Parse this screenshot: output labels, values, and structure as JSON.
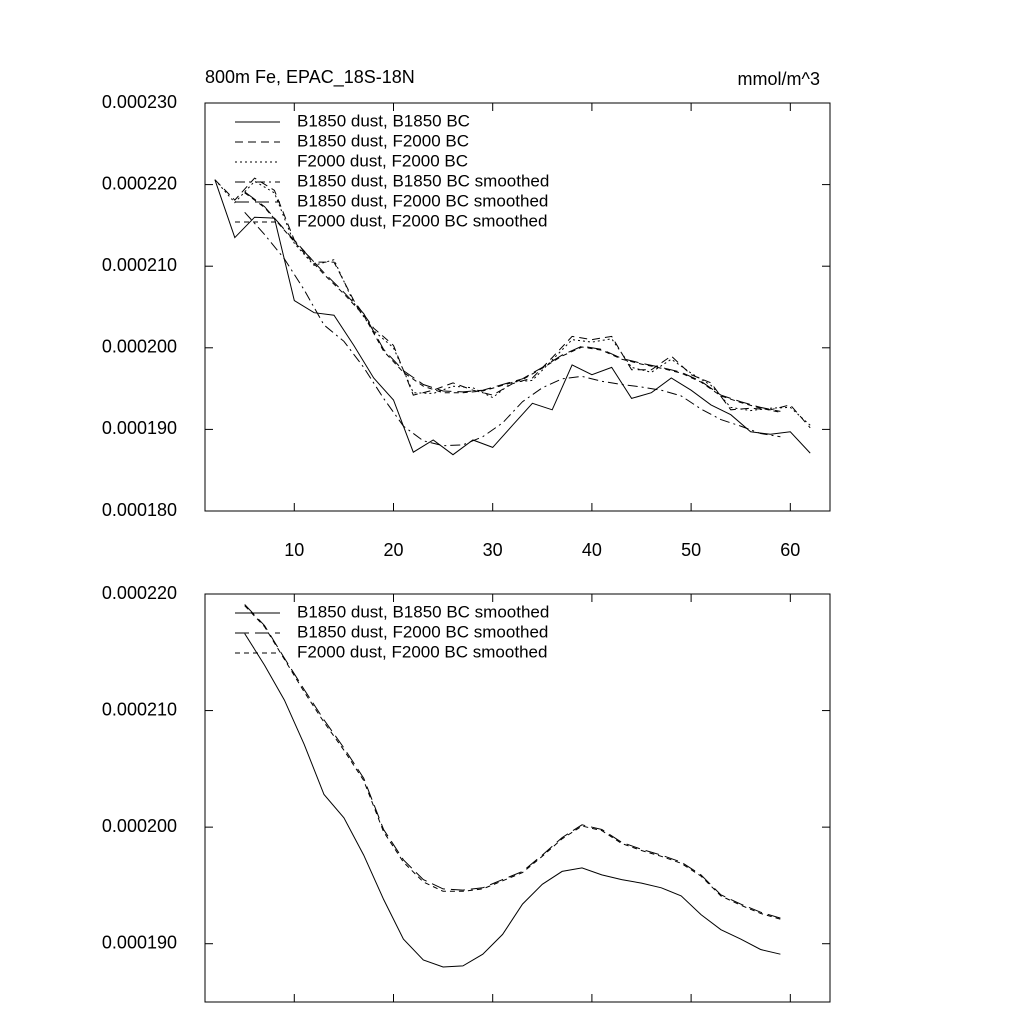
{
  "chart_data": [
    {
      "type": "line",
      "title": "800m Fe, EPAC_18S-18N",
      "units": "mmol/m^3",
      "xlim": [
        1,
        64
      ],
      "xticks": [
        10,
        20,
        30,
        40,
        50,
        60
      ],
      "ylim": [
        0.00018,
        0.00023
      ],
      "yticks": [
        {
          "value": 0.00018,
          "label": "0.000180"
        },
        {
          "value": 0.00019,
          "label": "0.000190"
        },
        {
          "value": 0.0002,
          "label": "0.000200"
        },
        {
          "value": 0.00021,
          "label": "0.000210"
        },
        {
          "value": 0.00022,
          "label": "0.000220"
        },
        {
          "value": 0.00023,
          "label": "0.000230"
        }
      ],
      "series": [
        {
          "name": "B1850 dust, B1850 BC",
          "color": "#000000",
          "dash": "solid",
          "x": [
            2,
            4,
            6,
            8,
            10,
            12,
            14,
            16,
            18,
            20,
            22,
            24,
            26,
            28,
            30,
            32,
            34,
            36,
            38,
            40,
            42,
            44,
            46,
            48,
            50,
            52,
            54,
            56,
            58,
            60,
            62
          ],
          "values": [
            0.0002206,
            0.0002135,
            0.000216,
            0.0002159,
            0.0002058,
            0.0002043,
            0.000204,
            0.0002003,
            0.0001963,
            0.0001936,
            0.0001872,
            0.0001887,
            0.0001869,
            0.0001887,
            0.0001878,
            0.0001905,
            0.0001932,
            0.0001924,
            0.0001979,
            0.0001967,
            0.0001976,
            0.0001938,
            0.0001945,
            0.0001963,
            0.0001948,
            0.000193,
            0.0001918,
            0.0001897,
            0.0001894,
            0.0001897,
            0.0001871
          ]
        },
        {
          "name": "B1850 dust, F2000 BC",
          "color": "#000000",
          "dash": "dashed",
          "x": [
            2,
            4,
            6,
            8,
            10,
            12,
            14,
            16,
            18,
            20,
            22,
            24,
            26,
            28,
            30,
            32,
            34,
            36,
            38,
            40,
            42,
            44,
            46,
            48,
            50,
            52,
            54,
            56,
            58,
            60,
            62
          ],
          "values": [
            0.0002206,
            0.0002181,
            0.0002208,
            0.0002193,
            0.0002132,
            0.0002105,
            0.0002105,
            0.0002058,
            0.0002024,
            0.0002003,
            0.0001942,
            0.0001948,
            0.0001957,
            0.0001948,
            0.0001942,
            0.0001956,
            0.0001963,
            0.0001988,
            0.0002014,
            0.000201,
            0.0002014,
            0.0001973,
            0.0001973,
            0.000199,
            0.0001967,
            0.0001957,
            0.0001924,
            0.0001926,
            0.0001924,
            0.000193,
            0.0001902
          ]
        },
        {
          "name": "F2000 dust, F2000 BC",
          "color": "#000000",
          "dash": "dotted",
          "x": [
            2,
            4,
            6,
            8,
            10,
            12,
            14,
            16,
            18,
            20,
            22,
            24,
            26,
            28,
            30,
            32,
            34,
            36,
            38,
            40,
            42,
            44,
            46,
            48,
            50,
            52,
            54,
            56,
            58,
            60,
            62
          ],
          "values": [
            0.0002206,
            0.0002178,
            0.0002204,
            0.000219,
            0.0002128,
            0.0002101,
            0.0002108,
            0.0002055,
            0.0002021,
            0.0002,
            0.0001945,
            0.0001944,
            0.0001953,
            0.0001951,
            0.0001939,
            0.0001958,
            0.000196,
            0.0001985,
            0.000201,
            0.0002007,
            0.0002011,
            0.0001976,
            0.000197,
            0.0001986,
            0.0001969,
            0.0001954,
            0.0001927,
            0.0001923,
            0.0001926,
            0.0001927,
            0.0001905
          ]
        },
        {
          "name": "B1850 dust, B1850 BC smoothed",
          "color": "#000000",
          "dash": "dashdot",
          "x": [
            5,
            7,
            9,
            11,
            13,
            15,
            17,
            19,
            21,
            23,
            25,
            27,
            29,
            31,
            33,
            35,
            37,
            39,
            41,
            43,
            45,
            47,
            49,
            51,
            53,
            55,
            57,
            59
          ],
          "values": [
            0.0002166,
            0.0002139,
            0.0002109,
            0.0002071,
            0.0002028,
            0.0002008,
            0.0001976,
            0.0001938,
            0.0001904,
            0.0001886,
            0.000188,
            0.0001881,
            0.0001891,
            0.0001908,
            0.0001934,
            0.0001951,
            0.0001962,
            0.0001965,
            0.0001959,
            0.0001955,
            0.0001952,
            0.0001948,
            0.0001941,
            0.0001925,
            0.0001912,
            0.0001904,
            0.0001895,
            0.0001891
          ]
        },
        {
          "name": "B1850 dust, F2000 BC smoothed",
          "color": "#000000",
          "dash": "longdash",
          "x": [
            5,
            7,
            9,
            11,
            13,
            15,
            17,
            19,
            21,
            23,
            25,
            27,
            29,
            31,
            33,
            35,
            37,
            39,
            41,
            43,
            45,
            47,
            49,
            51,
            53,
            55,
            57,
            59
          ],
          "values": [
            0.0002191,
            0.0002173,
            0.0002145,
            0.0002118,
            0.0002092,
            0.0002068,
            0.0002042,
            0.0001998,
            0.0001972,
            0.0001955,
            0.0001947,
            0.0001946,
            0.0001948,
            0.0001955,
            0.0001962,
            0.0001976,
            0.0001991,
            0.0002002,
            0.0001998,
            0.0001987,
            0.0001981,
            0.0001976,
            0.000197,
            0.0001959,
            0.0001942,
            0.0001934,
            0.0001927,
            0.0001922
          ]
        },
        {
          "name": "F2000 dust, F2000 BC smoothed",
          "color": "#000000",
          "dash": "shortdash",
          "x": [
            5,
            7,
            9,
            11,
            13,
            15,
            17,
            19,
            21,
            23,
            25,
            27,
            29,
            31,
            33,
            35,
            37,
            39,
            41,
            43,
            45,
            47,
            49,
            51,
            53,
            55,
            57,
            59
          ],
          "values": [
            0.000219,
            0.0002172,
            0.0002144,
            0.0002116,
            0.000209,
            0.0002066,
            0.000204,
            0.0001996,
            0.000197,
            0.0001953,
            0.0001945,
            0.0001945,
            0.0001947,
            0.0001954,
            0.0001961,
            0.0001975,
            0.000199,
            0.0002001,
            0.0001997,
            0.0001986,
            0.000198,
            0.0001975,
            0.0001969,
            0.0001958,
            0.0001941,
            0.0001933,
            0.0001926,
            0.0001921
          ]
        }
      ]
    },
    {
      "type": "line",
      "xlim": [
        1,
        64
      ],
      "xticks": [
        10,
        20,
        30,
        40,
        50,
        60
      ],
      "ylim": [
        0.000185,
        0.00022
      ],
      "yticks": [
        {
          "value": 0.00019,
          "label": "0.000190"
        },
        {
          "value": 0.0002,
          "label": "0.000200"
        },
        {
          "value": 0.00021,
          "label": "0.000210"
        },
        {
          "value": 0.00022,
          "label": "0.000220"
        }
      ],
      "series": [
        {
          "name": "B1850 dust, B1850 BC smoothed",
          "color": "#000000",
          "dash": "solid",
          "x": [
            5,
            7,
            9,
            11,
            13,
            15,
            17,
            19,
            21,
            23,
            25,
            27,
            29,
            31,
            33,
            35,
            37,
            39,
            41,
            43,
            45,
            47,
            49,
            51,
            53,
            55,
            57,
            59
          ],
          "values": [
            0.0002166,
            0.0002139,
            0.0002109,
            0.0002071,
            0.0002028,
            0.0002008,
            0.0001976,
            0.0001938,
            0.0001904,
            0.0001886,
            0.000188,
            0.0001881,
            0.0001891,
            0.0001908,
            0.0001934,
            0.0001951,
            0.0001962,
            0.0001965,
            0.0001959,
            0.0001955,
            0.0001952,
            0.0001948,
            0.0001941,
            0.0001925,
            0.0001912,
            0.0001904,
            0.0001895,
            0.0001891
          ]
        },
        {
          "name": "B1850 dust, F2000 BC smoothed",
          "color": "#000000",
          "dash": "longdash",
          "x": [
            5,
            7,
            9,
            11,
            13,
            15,
            17,
            19,
            21,
            23,
            25,
            27,
            29,
            31,
            33,
            35,
            37,
            39,
            41,
            43,
            45,
            47,
            49,
            51,
            53,
            55,
            57,
            59
          ],
          "values": [
            0.0002191,
            0.0002173,
            0.0002145,
            0.0002118,
            0.0002092,
            0.0002068,
            0.0002042,
            0.0001998,
            0.0001972,
            0.0001955,
            0.0001947,
            0.0001946,
            0.0001948,
            0.0001955,
            0.0001962,
            0.0001976,
            0.0001991,
            0.0002002,
            0.0001998,
            0.0001987,
            0.0001981,
            0.0001976,
            0.000197,
            0.0001959,
            0.0001942,
            0.0001934,
            0.0001927,
            0.0001922
          ]
        },
        {
          "name": "F2000 dust, F2000 BC smoothed",
          "color": "#000000",
          "dash": "shortdash",
          "x": [
            5,
            7,
            9,
            11,
            13,
            15,
            17,
            19,
            21,
            23,
            25,
            27,
            29,
            31,
            33,
            35,
            37,
            39,
            41,
            43,
            45,
            47,
            49,
            51,
            53,
            55,
            57,
            59
          ],
          "values": [
            0.000219,
            0.0002172,
            0.0002144,
            0.0002116,
            0.000209,
            0.0002066,
            0.000204,
            0.0001996,
            0.000197,
            0.0001953,
            0.0001945,
            0.0001945,
            0.0001947,
            0.0001954,
            0.0001961,
            0.0001975,
            0.000199,
            0.0002001,
            0.0001997,
            0.0001986,
            0.000198,
            0.0001975,
            0.0001969,
            0.0001958,
            0.0001941,
            0.0001933,
            0.0001926,
            0.0001921
          ]
        }
      ]
    }
  ]
}
